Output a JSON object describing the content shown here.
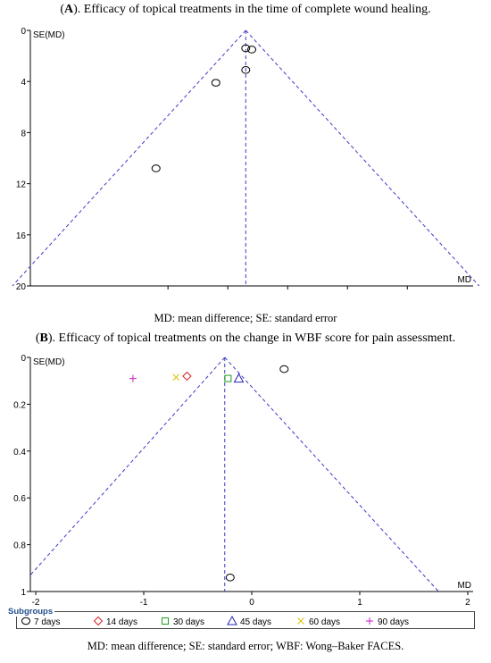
{
  "panel_a": {
    "title_letter": "A",
    "title_rest": "). Efficacy of topical treatments in the time of complete wound healing.",
    "caption": "MD: mean difference; SE: standard error"
  },
  "panel_b": {
    "title_letter": "B",
    "title_rest": "). Efficacy of topical treatments on the change in WBF score for pain assessment.",
    "caption": "MD: mean difference; SE: standard error; WBF: Wong–Baker FACES."
  },
  "colors": {
    "funnel": "#3a3ac8",
    "points_default": "#000000"
  },
  "chart_data": [
    {
      "type": "scatter",
      "subtype": "funnel-plot",
      "xlabel": "MD",
      "ylabel": "SE(MD)",
      "xlim": [
        -43,
        31
      ],
      "ylim": [
        0,
        20
      ],
      "y_inverted": true,
      "x_ticks": [
        -20,
        -10,
        0,
        10,
        20
      ],
      "y_ticks": [
        0,
        4,
        8,
        12,
        16,
        20
      ],
      "pooled_md": -7,
      "funnel_apex": [
        -7,
        0
      ],
      "funnel_base": [
        -46,
        20
      ],
      "funnel_base_right": [
        32,
        20
      ],
      "points": [
        {
          "x": -7,
          "y": 1.4
        },
        {
          "x": -6,
          "y": 1.5
        },
        {
          "x": -7,
          "y": 3.1
        },
        {
          "x": -12,
          "y": 4.1
        },
        {
          "x": -22,
          "y": 10.8
        }
      ]
    },
    {
      "type": "scatter",
      "subtype": "funnel-plot",
      "xlabel": "MD",
      "ylabel": "SE(MD)",
      "xlim": [
        -2.05,
        2.05
      ],
      "ylim": [
        0,
        1
      ],
      "y_inverted": true,
      "x_ticks": [
        -2,
        -1,
        0,
        1,
        2
      ],
      "y_ticks": [
        0,
        0.2,
        0.4,
        0.6,
        0.8,
        1
      ],
      "pooled_md": -0.25,
      "funnel_apex": [
        -0.25,
        0
      ],
      "funnel_base": [
        -2.05,
        0.93
      ],
      "funnel_base_right": [
        1.73,
        1
      ],
      "legend": {
        "title": "Subgroups",
        "entries": [
          {
            "label": "7 days",
            "marker": "circle",
            "color": "#000000"
          },
          {
            "label": "14 days",
            "marker": "diamond",
            "color": "#d62020"
          },
          {
            "label": "30 days",
            "marker": "square",
            "color": "#1aa01a"
          },
          {
            "label": "45 days",
            "marker": "triangle",
            "color": "#2424b4"
          },
          {
            "label": "60 days",
            "marker": "x",
            "color": "#d8c400"
          },
          {
            "label": "90 days",
            "marker": "plus",
            "color": "#c81ec8"
          }
        ]
      },
      "points": [
        {
          "x": 0.3,
          "y": 0.05,
          "group": "7 days"
        },
        {
          "x": -0.2,
          "y": 0.94,
          "group": "7 days"
        },
        {
          "x": -0.6,
          "y": 0.08,
          "group": "14 days"
        },
        {
          "x": -0.22,
          "y": 0.09,
          "group": "30 days"
        },
        {
          "x": -0.12,
          "y": 0.09,
          "group": "45 days"
        },
        {
          "x": -0.7,
          "y": 0.085,
          "group": "60 days"
        },
        {
          "x": -1.1,
          "y": 0.09,
          "group": "90 days"
        }
      ]
    }
  ]
}
